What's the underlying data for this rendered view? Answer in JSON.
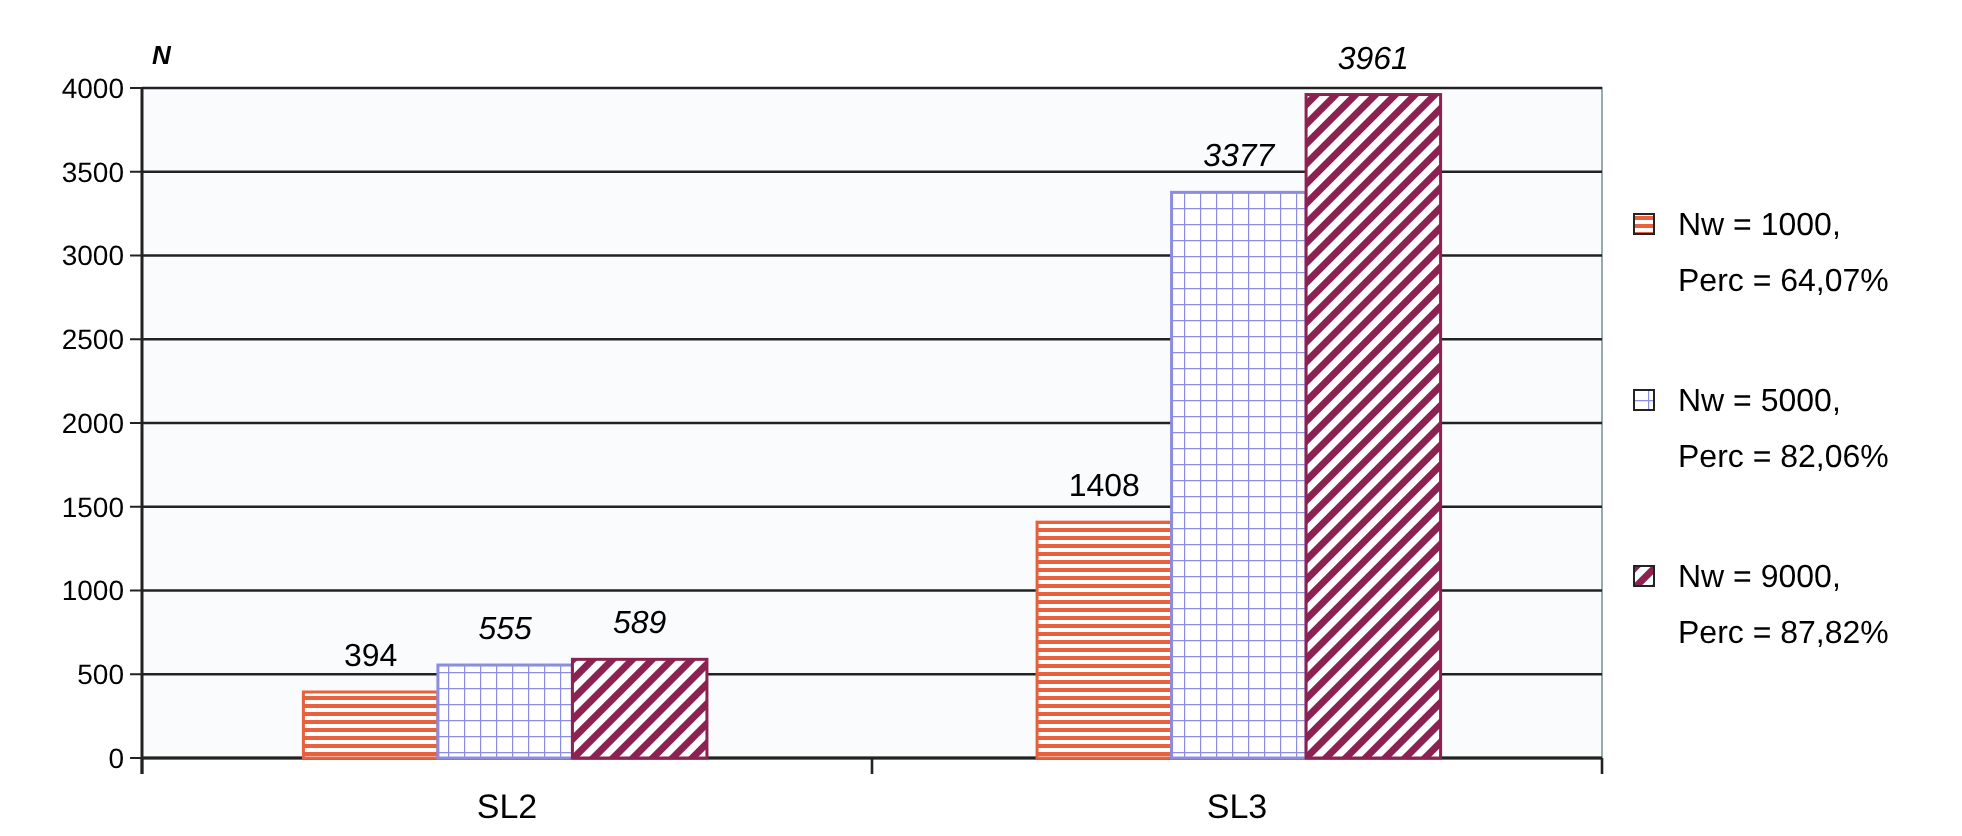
{
  "chart_data": {
    "type": "bar",
    "ylabel": "N",
    "categories": [
      "SL2",
      "SL3"
    ],
    "series": [
      {
        "name": "Nw = 1000, Perc = 64,07%",
        "color": "#e8603c",
        "values": [
          394,
          1408
        ]
      },
      {
        "name": "Nw = 5000, Perc = 82,06%",
        "color": "#8c8ce0",
        "values": [
          555,
          3377
        ]
      },
      {
        "name": "Nw = 9000, Perc = 87,82%",
        "color": "#8b2252",
        "values": [
          589,
          3961
        ]
      }
    ],
    "ylim": [
      0,
      4000
    ],
    "yticks": [
      0,
      500,
      1000,
      1500,
      2000,
      2500,
      3000,
      3500,
      4000
    ],
    "grid": "y",
    "legend": "right",
    "data_labels": true
  }
}
